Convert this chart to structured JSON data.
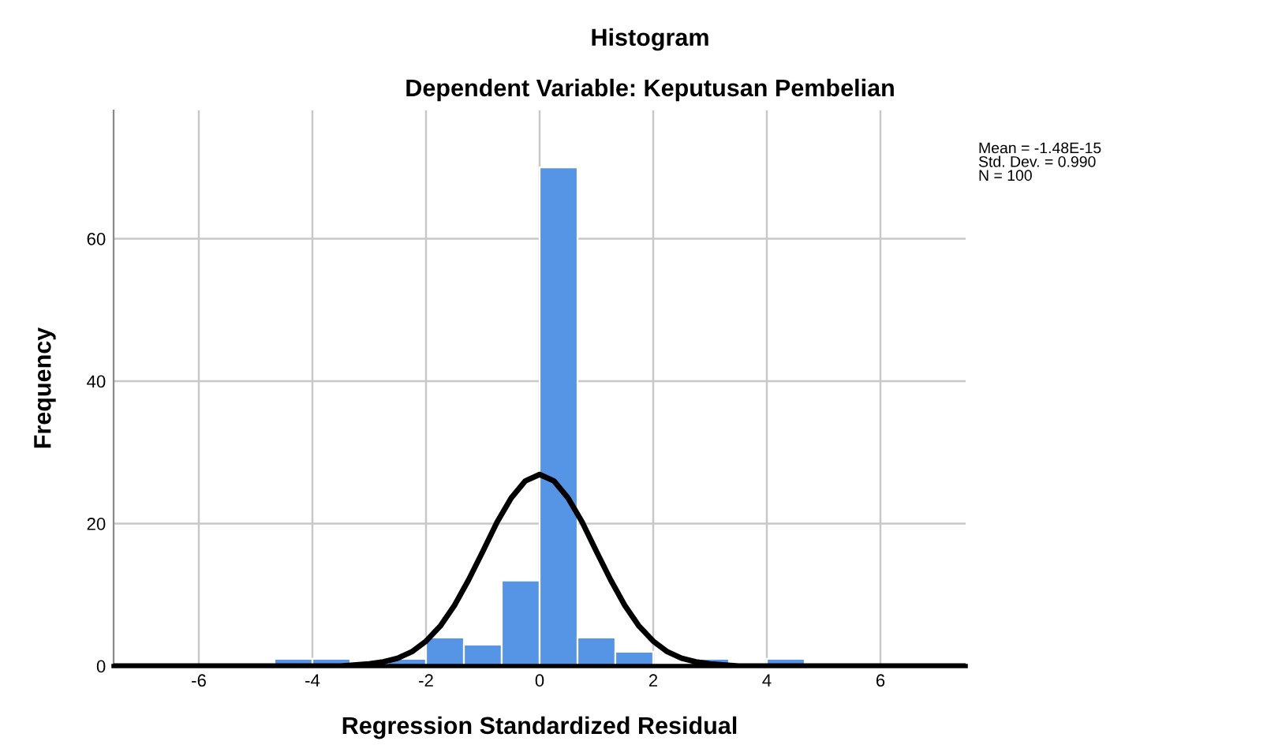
{
  "chart_data": {
    "type": "histogram",
    "title": "Histogram",
    "subtitle": "Dependent Variable: Keputusan Pembelian",
    "xlabel": "Regression Standardized Residual",
    "ylabel": "Frequency",
    "bins": [
      -4.667,
      -4.0,
      -3.333,
      -2.667,
      -2.0,
      -1.333,
      -0.667,
      0.0,
      0.667,
      1.333,
      2.0,
      2.667,
      3.333,
      4.0,
      4.667
    ],
    "values": [
      1,
      1,
      0,
      1,
      4,
      3,
      12,
      70,
      4,
      2,
      0,
      1,
      0,
      1
    ],
    "color": "#5694e5",
    "series": [
      {
        "type": "line",
        "color": "#000000",
        "x": [
          -7.5,
          -4,
          -3.5,
          -3,
          -2.75,
          -2.5,
          -2.25,
          -2,
          -1.75,
          -1.5,
          -1.25,
          -1,
          -0.75,
          -0.5,
          -0.25,
          0,
          0.25,
          0.5,
          0.75,
          1,
          1.25,
          1.5,
          1.75,
          2,
          2.25,
          2.5,
          2.75,
          3,
          3.5,
          4,
          7.5
        ],
        "values": [
          0,
          0,
          0.0,
          0.3,
          0.6,
          1.1,
          2.0,
          3.5,
          5.6,
          8.5,
          12.1,
          16.1,
          20.2,
          23.6,
          26.0,
          26.9,
          26.0,
          23.6,
          20.2,
          16.1,
          12.1,
          8.5,
          5.6,
          3.5,
          2.0,
          1.1,
          0.6,
          0.3,
          0.0,
          0,
          0
        ]
      }
    ],
    "annotations": [
      "Mean = -1.48E-15\nStd. Dev. = 0.990\nN = 100"
    ],
    "xlim": [
      -7.5,
      7.5
    ],
    "ylim": [
      0,
      78
    ],
    "xticks": [
      -6,
      -4,
      -2,
      0,
      2,
      4,
      6
    ],
    "yticks": [
      0,
      20,
      40,
      60
    ],
    "grid": true,
    "legend": false,
    "marker": "none",
    "line_style": "solid"
  }
}
